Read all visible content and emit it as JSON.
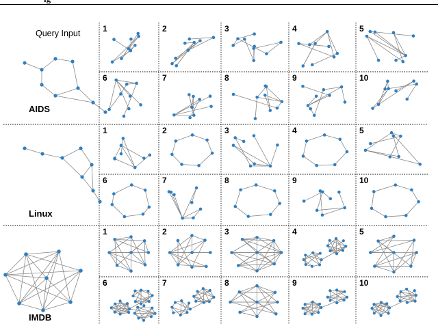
{
  "header_fragment": "ig",
  "query_label": "Query Input",
  "sections": [
    {
      "name": "AIDS",
      "type": "chem"
    },
    {
      "name": "Linux",
      "type": "cfg"
    },
    {
      "name": "IMDB",
      "type": "dense"
    }
  ],
  "result_ranks": [
    "1",
    "2",
    "3",
    "4",
    "5",
    "6",
    "7",
    "8",
    "9",
    "10"
  ],
  "colors": {
    "node": "#2f7fc1",
    "edge": "#888888",
    "divider": "#000000"
  }
}
